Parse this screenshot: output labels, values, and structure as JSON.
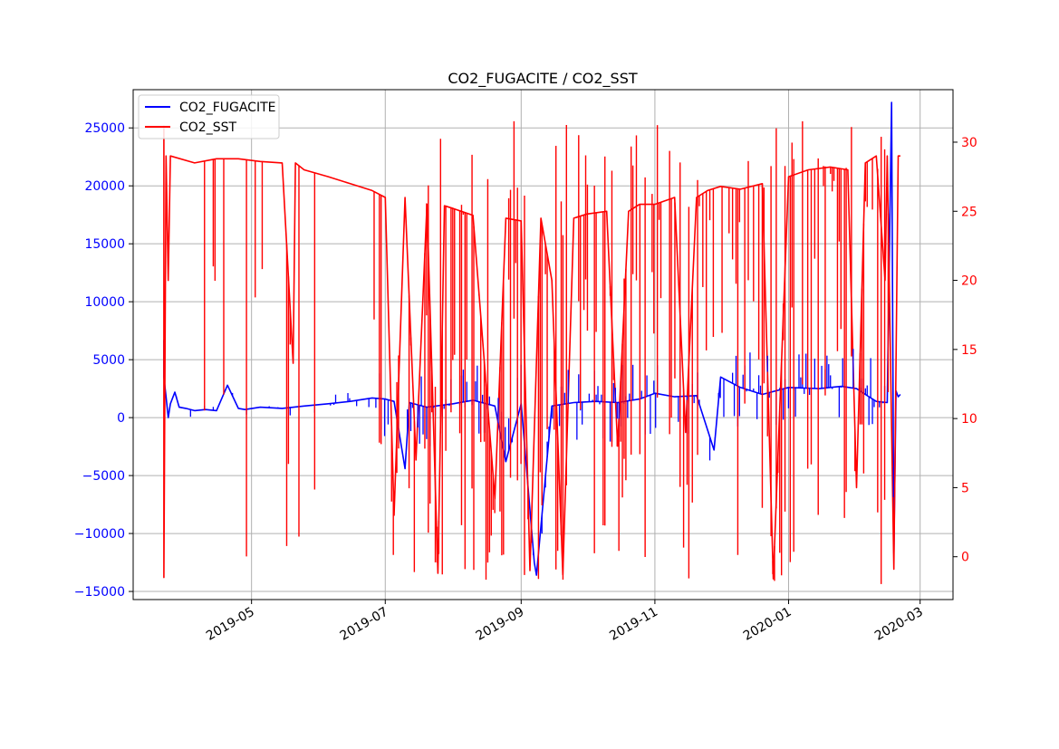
{
  "chart_data": {
    "type": "line",
    "title": "CO2_FUGACITE / CO2_SST",
    "x_axis": {
      "type": "date",
      "range": [
        "2019-03-08",
        "2020-03-16"
      ],
      "ticks": [
        "2019-05",
        "2019-07",
        "2019-09",
        "2019-11",
        "2020-01",
        "2020-03"
      ],
      "tick_dates": [
        "2019-05-01",
        "2019-07-01",
        "2019-09-01",
        "2019-11-01",
        "2020-01-01",
        "2020-03-01"
      ]
    },
    "y_left": {
      "series": "CO2_FUGACITE",
      "color": "#0000ff",
      "range": [
        -15700,
        28300
      ],
      "ticks": [
        -15000,
        -10000,
        -5000,
        0,
        5000,
        10000,
        15000,
        20000,
        25000
      ],
      "tick_labels": [
        "−15000",
        "−10000",
        "−5000",
        "0",
        "5000",
        "10000",
        "15000",
        "20000",
        "25000"
      ]
    },
    "y_right": {
      "series": "CO2_SST",
      "color": "#ff0000",
      "range": [
        -3.1,
        33.8
      ],
      "ticks": [
        0,
        5,
        10,
        15,
        20,
        25,
        30
      ],
      "tick_labels": [
        "0",
        "5",
        "10",
        "15",
        "20",
        "25",
        "30"
      ]
    },
    "grid": true,
    "legend": {
      "position": "top-left",
      "entries": [
        "CO2_FUGACITE",
        "CO2_SST"
      ]
    },
    "series": [
      {
        "name": "CO2_FUGACITE",
        "axis": "left",
        "color": "#0000ff",
        "x": [
          "2019-03-22",
          "2019-03-22",
          "2019-03-23",
          "2019-03-24",
          "2019-03-25",
          "2019-03-27",
          "2019-03-29",
          "2019-04-01",
          "2019-04-05",
          "2019-04-10",
          "2019-04-15",
          "2019-04-20",
          "2019-04-25",
          "2019-04-28",
          "2019-05-05",
          "2019-05-15",
          "2019-05-25",
          "2019-06-05",
          "2019-06-15",
          "2019-06-25",
          "2019-07-01",
          "2019-07-05",
          "2019-07-10",
          "2019-07-12",
          "2019-07-20",
          "2019-08-01",
          "2019-08-10",
          "2019-08-20",
          "2019-08-25",
          "2019-09-01",
          "2019-09-07",
          "2019-09-08",
          "2019-09-15",
          "2019-09-25",
          "2019-10-05",
          "2019-10-15",
          "2019-10-25",
          "2019-11-01",
          "2019-11-10",
          "2019-11-20",
          "2019-11-28",
          "2019-12-01",
          "2019-12-10",
          "2019-12-20",
          "2020-01-01",
          "2020-01-15",
          "2020-01-25",
          "2020-02-01",
          "2020-02-05",
          "2020-02-10",
          "2020-02-15",
          "2020-02-17",
          "2020-02-18",
          "2020-02-19",
          "2020-02-20",
          "2020-02-21"
        ],
        "y": [
          6700,
          3500,
          1800,
          0,
          1200,
          2200,
          900,
          800,
          600,
          700,
          600,
          2800,
          800,
          700,
          900,
          800,
          1000,
          1200,
          1400,
          1700,
          1600,
          1400,
          -4400,
          1300,
          900,
          1200,
          1500,
          1000,
          -3800,
          1200,
          -12500,
          -13600,
          1000,
          1300,
          1400,
          1300,
          1600,
          2100,
          1800,
          1900,
          -2800,
          3500,
          2600,
          2000,
          2600,
          2500,
          2700,
          2500,
          2000,
          1400,
          1300,
          27200,
          -11700,
          2300,
          1800,
          2000
        ]
      },
      {
        "name": "CO2_SST",
        "axis": "right",
        "color": "#ff0000",
        "x": [
          "2019-03-22",
          "2019-03-22",
          "2019-03-23",
          "2019-03-24",
          "2019-03-25",
          "2019-04-05",
          "2019-04-15",
          "2019-04-25",
          "2019-05-05",
          "2019-05-15",
          "2019-05-20",
          "2019-05-21",
          "2019-05-25",
          "2019-06-05",
          "2019-06-15",
          "2019-06-25",
          "2019-07-01",
          "2019-07-05",
          "2019-07-10",
          "2019-07-15",
          "2019-07-20",
          "2019-07-25",
          "2019-07-28",
          "2019-08-01",
          "2019-08-10",
          "2019-08-20",
          "2019-08-25",
          "2019-09-01",
          "2019-09-05",
          "2019-09-10",
          "2019-09-15",
          "2019-09-20",
          "2019-09-25",
          "2019-10-01",
          "2019-10-10",
          "2019-10-15",
          "2019-10-20",
          "2019-10-25",
          "2019-11-01",
          "2019-11-10",
          "2019-11-15",
          "2019-11-20",
          "2019-11-25",
          "2019-12-01",
          "2019-12-10",
          "2019-12-20",
          "2019-12-25",
          "2020-01-01",
          "2020-01-10",
          "2020-01-20",
          "2020-01-28",
          "2020-02-01",
          "2020-02-05",
          "2020-02-10",
          "2020-02-14",
          "2020-02-15",
          "2020-02-18",
          "2020-02-20",
          "2020-02-21"
        ],
        "y": [
          31.2,
          -1.5,
          29.0,
          20.0,
          29.0,
          28.5,
          28.8,
          28.8,
          28.6,
          28.5,
          14.0,
          28.5,
          28.0,
          27.5,
          27.0,
          26.5,
          26.0,
          3.0,
          26.0,
          7.0,
          25.5,
          -1.2,
          25.4,
          25.2,
          24.7,
          4.2,
          24.5,
          24.3,
          -1.0,
          24.5,
          20.0,
          -1.3,
          24.5,
          24.8,
          25.0,
          8.0,
          25.0,
          25.5,
          25.5,
          26.0,
          9.0,
          26.0,
          26.5,
          26.8,
          26.6,
          27.0,
          -1.6,
          27.5,
          28.0,
          28.2,
          28.0,
          5.0,
          28.5,
          29.0,
          20.0,
          29.0,
          -0.9,
          29.0,
          29.0
        ]
      }
    ]
  }
}
